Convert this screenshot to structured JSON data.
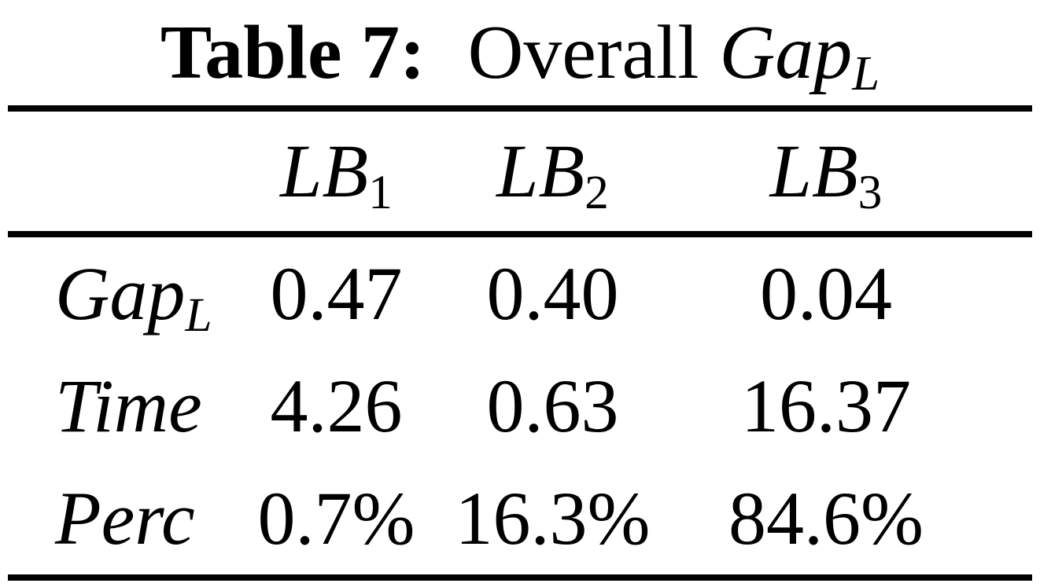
{
  "title": {
    "prefix": "Table 7:",
    "middle": "Overall",
    "math_base": "Gap",
    "math_sub": "L"
  },
  "colors": {
    "text": "#000000",
    "background": "#ffffff",
    "rule": "#000000"
  },
  "table": {
    "columns": [
      {
        "base": "LB",
        "sub": "1"
      },
      {
        "base": "LB",
        "sub": "2"
      },
      {
        "base": "LB",
        "sub": "3"
      }
    ],
    "rows": [
      {
        "label_base": "Gap",
        "label_sub": "L",
        "values": [
          "0.47",
          "0.40",
          "0.04"
        ]
      },
      {
        "label_base": "Time",
        "label_sub": "",
        "values": [
          "4.26",
          "0.63",
          "16.37"
        ]
      },
      {
        "label_base": "Perc",
        "label_sub": "",
        "values": [
          "0.7%",
          "16.3%",
          "84.6%"
        ]
      }
    ]
  }
}
